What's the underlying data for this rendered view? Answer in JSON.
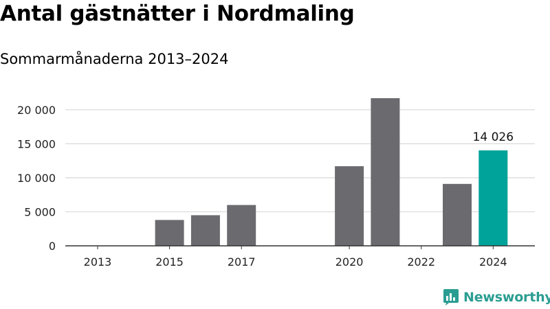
{
  "title": "Antal gästnätter i Nordmaling",
  "subtitle": "Sommarmånaderna 2013–2024",
  "brand": {
    "name": "Newsworthy",
    "icon": "newsworthy-logo-icon",
    "color": "#2a9d92"
  },
  "chart_data": {
    "type": "bar",
    "title": "Antal gästnätter i Nordmaling",
    "subtitle": "Sommarmånaderna 2013–2024",
    "xlabel": "",
    "ylabel": "",
    "ylim": [
      0,
      22000
    ],
    "yticks": [
      0,
      5000,
      10000,
      15000,
      20000
    ],
    "ytick_labels": [
      "0",
      "5 000",
      "10 000",
      "15 000",
      "20 000"
    ],
    "categories": [
      "2013",
      "2014",
      "2015",
      "2016",
      "2017",
      "2018",
      "2019",
      "2020",
      "2021",
      "2022",
      "2023",
      "2024"
    ],
    "xtick_labels": [
      "2013",
      "",
      "2015",
      "",
      "2017",
      "",
      "",
      "2020",
      "",
      "2022",
      "",
      "2024"
    ],
    "values": [
      null,
      null,
      3800,
      4500,
      6000,
      null,
      null,
      11700,
      21700,
      null,
      9100,
      14026
    ],
    "colors": {
      "default": "#6b6a6f",
      "highlight": "#00a39a",
      "grid": "#d9d9d9",
      "axis": "#333333"
    },
    "highlight_index": 11,
    "annotation": {
      "index": 11,
      "text": "14 026"
    },
    "grid": true,
    "legend": "none"
  }
}
